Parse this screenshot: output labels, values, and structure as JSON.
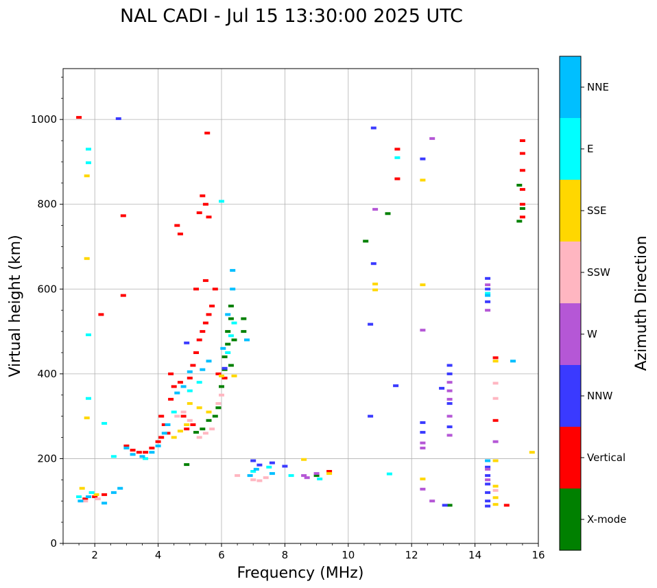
{
  "chart_data": {
    "type": "scatter",
    "title": "NAL CADI - Jul 15 13:30:00 2025 UTC",
    "xlabel": "Frequency (MHz)",
    "ylabel": "Virtual height (km)",
    "xlim": [
      1,
      16
    ],
    "ylim": [
      0,
      1120
    ],
    "xticks": [
      2,
      4,
      6,
      8,
      10,
      12,
      14,
      16
    ],
    "yticks": [
      0,
      200,
      400,
      600,
      800,
      1000
    ],
    "grid": true,
    "colorbar": {
      "label": "Azimuth Direction",
      "categories": [
        {
          "name": "X-mode",
          "color": "#008000"
        },
        {
          "name": "Vertical",
          "color": "#ff0000"
        },
        {
          "name": "NNW",
          "color": "#3a3aff"
        },
        {
          "name": "W",
          "color": "#b557d6"
        },
        {
          "name": "SSW",
          "color": "#ffb6c1"
        },
        {
          "name": "SSE",
          "color": "#ffd700"
        },
        {
          "name": "E",
          "color": "#00ffff"
        },
        {
          "name": "NNE",
          "color": "#00bfff"
        }
      ]
    },
    "series": [
      {
        "name": "X-mode",
        "points": [
          [
            4.9,
            186
          ],
          [
            5.6,
            290
          ],
          [
            5.8,
            300
          ],
          [
            5.9,
            320
          ],
          [
            6.0,
            370
          ],
          [
            6.1,
            410
          ],
          [
            6.2,
            470
          ],
          [
            6.2,
            500
          ],
          [
            6.3,
            530
          ],
          [
            6.3,
            560
          ],
          [
            6.7,
            500
          ],
          [
            6.7,
            530
          ],
          [
            9.0,
            160
          ],
          [
            10.55,
            713
          ],
          [
            11.25,
            778
          ],
          [
            13.2,
            90
          ],
          [
            15.4,
            760
          ],
          [
            15.5,
            790
          ],
          [
            15.4,
            845
          ],
          [
            5.4,
            270
          ],
          [
            5.2,
            262
          ],
          [
            6.1,
            440
          ],
          [
            6.3,
            420
          ],
          [
            6.4,
            480
          ]
        ]
      },
      {
        "name": "Vertical",
        "points": [
          [
            1.5,
            1005
          ],
          [
            1.7,
            105
          ],
          [
            2.0,
            110
          ],
          [
            2.3,
            115
          ],
          [
            3.0,
            230
          ],
          [
            3.2,
            220
          ],
          [
            3.4,
            215
          ],
          [
            3.6,
            215
          ],
          [
            3.8,
            225
          ],
          [
            4.0,
            240
          ],
          [
            4.1,
            250
          ],
          [
            4.3,
            260
          ],
          [
            4.2,
            280
          ],
          [
            4.1,
            300
          ],
          [
            4.4,
            340
          ],
          [
            4.5,
            370
          ],
          [
            4.4,
            400
          ],
          [
            4.7,
            380
          ],
          [
            5.0,
            390
          ],
          [
            5.1,
            420
          ],
          [
            5.2,
            450
          ],
          [
            5.3,
            480
          ],
          [
            5.4,
            500
          ],
          [
            5.5,
            520
          ],
          [
            5.6,
            540
          ],
          [
            5.7,
            560
          ],
          [
            5.2,
            600
          ],
          [
            5.5,
            620
          ],
          [
            5.8,
            600
          ],
          [
            5.3,
            780
          ],
          [
            5.4,
            820
          ],
          [
            5.5,
            800
          ],
          [
            5.6,
            770
          ],
          [
            4.6,
            750
          ],
          [
            4.7,
            730
          ],
          [
            5.55,
            968
          ],
          [
            2.9,
            773
          ],
          [
            2.9,
            585
          ],
          [
            2.2,
            540
          ],
          [
            6.1,
            390
          ],
          [
            5.9,
            400
          ],
          [
            4.8,
            300
          ],
          [
            4.9,
            270
          ],
          [
            5.1,
            280
          ],
          [
            11.55,
            930
          ],
          [
            11.55,
            860
          ],
          [
            14.65,
            438
          ],
          [
            14.65,
            290
          ],
          [
            15.0,
            90
          ],
          [
            15.5,
            920
          ],
          [
            15.5,
            950
          ],
          [
            15.5,
            880
          ],
          [
            15.5,
            835
          ],
          [
            15.5,
            800
          ],
          [
            15.5,
            770
          ],
          [
            9.4,
            170
          ]
        ]
      },
      {
        "name": "NNW",
        "points": [
          [
            2.75,
            1002
          ],
          [
            10.8,
            980
          ],
          [
            12.35,
            907
          ],
          [
            10.8,
            660
          ],
          [
            10.7,
            517
          ],
          [
            10.7,
            300
          ],
          [
            11.5,
            372
          ],
          [
            12.35,
            285
          ],
          [
            12.35,
            262
          ],
          [
            12.95,
            366
          ],
          [
            13.2,
            420
          ],
          [
            13.2,
            400
          ],
          [
            13.2,
            330
          ],
          [
            13.2,
            275
          ],
          [
            13.05,
            90
          ],
          [
            14.4,
            625
          ],
          [
            14.4,
            600
          ],
          [
            14.4,
            570
          ],
          [
            14.4,
            180
          ],
          [
            14.4,
            160
          ],
          [
            14.4,
            140
          ],
          [
            14.4,
            120
          ],
          [
            14.4,
            100
          ],
          [
            14.4,
            88
          ],
          [
            7.0,
            195
          ],
          [
            7.2,
            185
          ],
          [
            7.6,
            190
          ],
          [
            8.0,
            182
          ],
          [
            6.1,
            413
          ],
          [
            4.9,
            473
          ]
        ]
      },
      {
        "name": "W",
        "points": [
          [
            10.85,
            788
          ],
          [
            12.65,
            955
          ],
          [
            12.35,
            503
          ],
          [
            12.35,
            237
          ],
          [
            12.35,
            225
          ],
          [
            12.35,
            128
          ],
          [
            12.65,
            100
          ],
          [
            13.2,
            380
          ],
          [
            13.2,
            360
          ],
          [
            13.2,
            340
          ],
          [
            13.2,
            300
          ],
          [
            13.2,
            255
          ],
          [
            14.4,
            610
          ],
          [
            14.4,
            550
          ],
          [
            14.4,
            175
          ],
          [
            14.4,
            150
          ],
          [
            14.65,
            240
          ],
          [
            8.6,
            160
          ],
          [
            8.7,
            155
          ],
          [
            9.0,
            165
          ]
        ]
      },
      {
        "name": "SSW",
        "points": [
          [
            4.6,
            300
          ],
          [
            4.8,
            310
          ],
          [
            5.0,
            290
          ],
          [
            5.5,
            260
          ],
          [
            5.7,
            270
          ],
          [
            5.9,
            330
          ],
          [
            6.0,
            350
          ],
          [
            6.5,
            160
          ],
          [
            7.0,
            150
          ],
          [
            7.2,
            148
          ],
          [
            7.4,
            155
          ],
          [
            14.65,
            378
          ],
          [
            14.65,
            342
          ],
          [
            14.65,
            125
          ],
          [
            1.7,
            100
          ],
          [
            2.1,
            105
          ],
          [
            5.3,
            250
          ]
        ]
      },
      {
        "name": "SSE",
        "points": [
          [
            1.6,
            130
          ],
          [
            1.75,
            672
          ],
          [
            1.75,
            867
          ],
          [
            1.75,
            296
          ],
          [
            4.5,
            250
          ],
          [
            4.7,
            265
          ],
          [
            4.9,
            280
          ],
          [
            5.0,
            330
          ],
          [
            5.3,
            320
          ],
          [
            5.6,
            310
          ],
          [
            6.0,
            395
          ],
          [
            6.4,
            395
          ],
          [
            10.85,
            612
          ],
          [
            10.85,
            598
          ],
          [
            12.35,
            857
          ],
          [
            12.35,
            610
          ],
          [
            12.35,
            152
          ],
          [
            14.65,
            430
          ],
          [
            14.65,
            195
          ],
          [
            14.65,
            135
          ],
          [
            14.65,
            108
          ],
          [
            14.65,
            92
          ],
          [
            15.8,
            215
          ],
          [
            8.6,
            198
          ],
          [
            9.4,
            165
          ],
          [
            2.05,
            115
          ]
        ]
      },
      {
        "name": "E",
        "points": [
          [
            1.8,
            930
          ],
          [
            1.8,
            898
          ],
          [
            1.8,
            492
          ],
          [
            1.8,
            342
          ],
          [
            1.5,
            110
          ],
          [
            1.9,
            120
          ],
          [
            2.3,
            283
          ],
          [
            2.6,
            205
          ],
          [
            3.6,
            200
          ],
          [
            4.5,
            310
          ],
          [
            5.0,
            360
          ],
          [
            5.3,
            380
          ],
          [
            6.2,
            450
          ],
          [
            6.3,
            490
          ],
          [
            6.4,
            520
          ],
          [
            6.0,
            807
          ],
          [
            11.55,
            910
          ],
          [
            11.3,
            164
          ],
          [
            7.0,
            170
          ],
          [
            7.5,
            180
          ],
          [
            8.2,
            160
          ],
          [
            9.1,
            152
          ],
          [
            14.4,
            590
          ]
        ]
      },
      {
        "name": "NNE",
        "points": [
          [
            1.55,
            100
          ],
          [
            1.8,
            110
          ],
          [
            2.3,
            95
          ],
          [
            2.6,
            120
          ],
          [
            3.0,
            225
          ],
          [
            3.2,
            210
          ],
          [
            3.5,
            205
          ],
          [
            3.8,
            215
          ],
          [
            4.0,
            230
          ],
          [
            4.2,
            260
          ],
          [
            4.3,
            280
          ],
          [
            4.6,
            355
          ],
          [
            4.8,
            370
          ],
          [
            5.0,
            405
          ],
          [
            5.4,
            410
          ],
          [
            5.6,
            430
          ],
          [
            6.05,
            460
          ],
          [
            6.2,
            540
          ],
          [
            6.35,
            600
          ],
          [
            6.35,
            644
          ],
          [
            6.8,
            480
          ],
          [
            6.9,
            160
          ],
          [
            7.1,
            175
          ],
          [
            7.6,
            165
          ],
          [
            2.8,
            130
          ],
          [
            14.4,
            585
          ],
          [
            14.4,
            195
          ],
          [
            15.2,
            430
          ]
        ]
      }
    ]
  }
}
